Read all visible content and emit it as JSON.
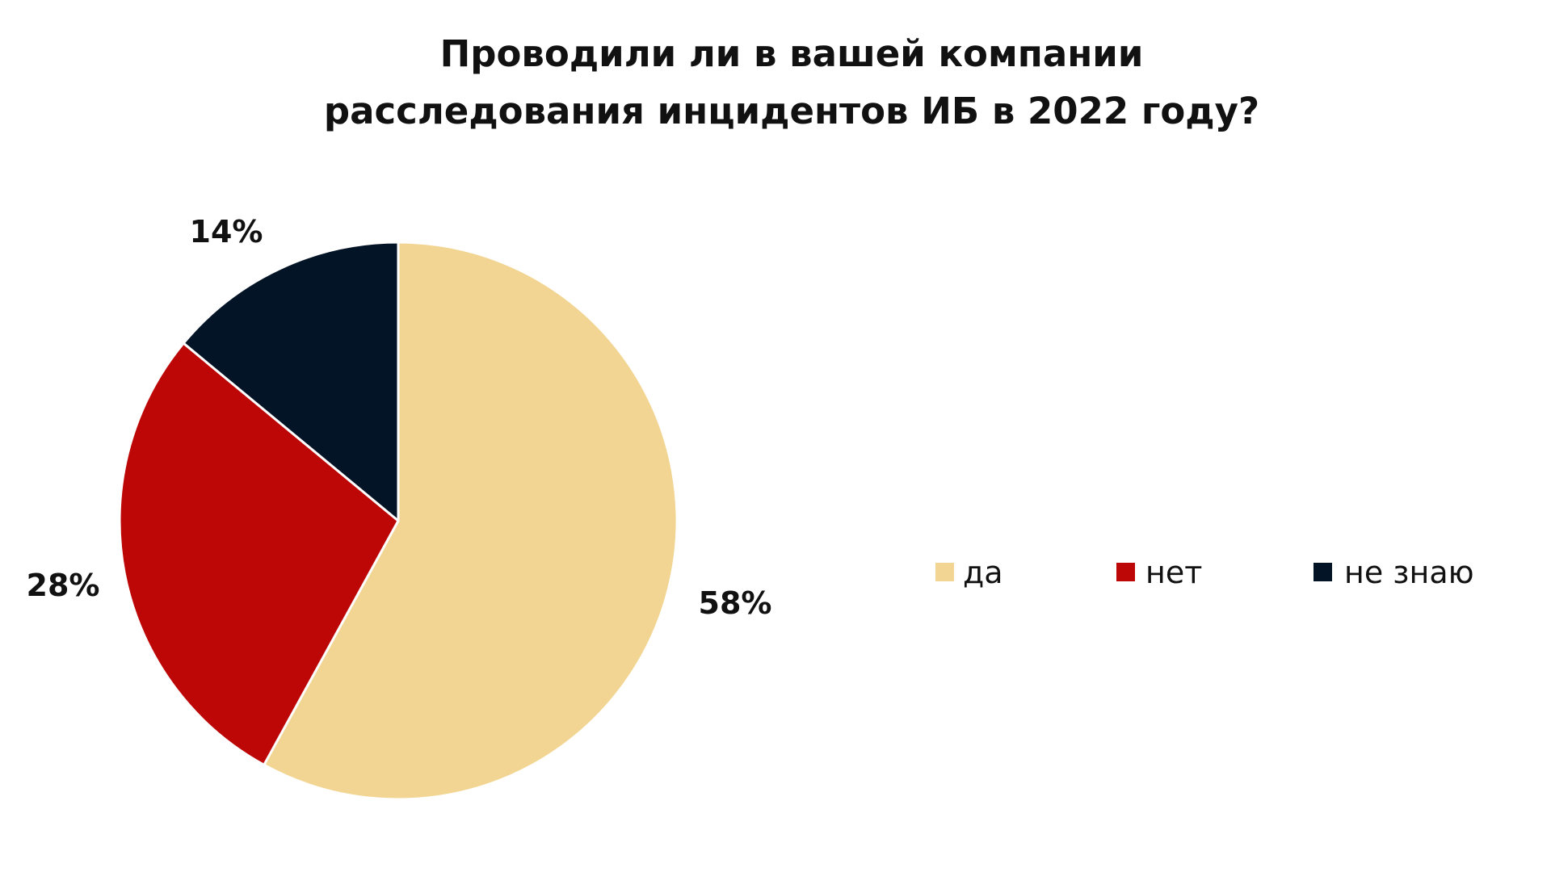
{
  "chart_data": {
    "type": "pie",
    "title_lines": [
      "Проводили ли в вашей компании",
      "расследования инцидентов ИБ в 2022 году?"
    ],
    "categories": [
      "да",
      "нет",
      "не знаю"
    ],
    "values": [
      58,
      28,
      14
    ],
    "data_labels": [
      "58%",
      "28%",
      "14%"
    ],
    "colors": [
      "#F2D592",
      "#BD0606",
      "#041427"
    ],
    "legend_position": "right"
  }
}
